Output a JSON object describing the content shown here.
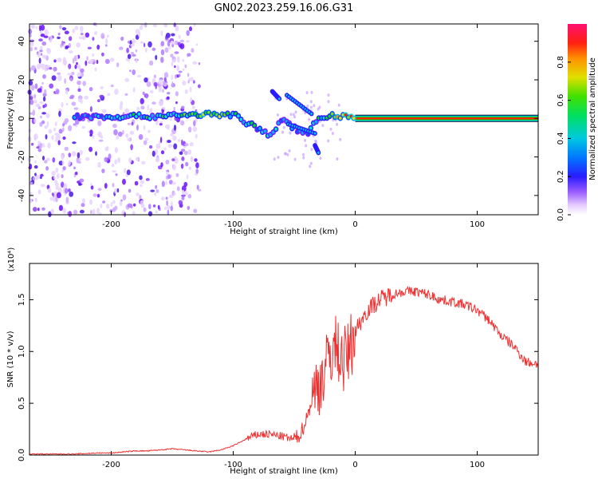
{
  "figure_title": "GN02.2023.259.16.06.G31",
  "chart_data": [
    {
      "type": "heatmap",
      "title": "GN02.2023.259.16.06.G31",
      "xlabel": "Height of straight line (km)",
      "ylabel": "Frequency (Hz)",
      "xlim": [
        -267,
        150
      ],
      "ylim": [
        -50,
        49
      ],
      "xticks": [
        -200,
        -100,
        0,
        100
      ],
      "xtick_labels": [
        "-200",
        "-100",
        "0",
        "100"
      ],
      "yticks": [
        -40,
        -20,
        0,
        20,
        40
      ],
      "ytick_labels": [
        "-40",
        "-20",
        "0",
        "20",
        "40"
      ],
      "colorbar": {
        "label": "Normalized spectral amplitude",
        "range": [
          0,
          1
        ],
        "ticks": [
          0.0,
          0.2,
          0.4,
          0.6,
          0.8
        ],
        "tick_labels": [
          "0.0",
          "0.2",
          "0.4",
          "0.6",
          "0.8"
        ],
        "colors": [
          "#ffffff",
          "#e6ccff",
          "#b48cff",
          "#7a1cff",
          "#2a1cff",
          "#0055ff",
          "#00b0ff",
          "#00e8c8",
          "#00e000",
          "#7ae000",
          "#e0e000",
          "#ff9000",
          "#ff2000",
          "#ff1060"
        ]
      },
      "ridge": {
        "x": [
          -230,
          -200,
          -170,
          -140,
          -120,
          -100,
          -90,
          -80,
          -70,
          -60,
          -50,
          -40,
          -30,
          -20,
          -10,
          0,
          50,
          100,
          150
        ],
        "freq": [
          1,
          1,
          1,
          2,
          2,
          2,
          -2,
          -5,
          -9,
          -1,
          -5,
          -8,
          0,
          2,
          1,
          0,
          0,
          0,
          0
        ],
        "amplitude": [
          0.45,
          0.5,
          0.55,
          0.6,
          0.7,
          0.6,
          0.55,
          0.5,
          0.5,
          0.45,
          0.45,
          0.45,
          0.55,
          0.7,
          0.85,
          0.9,
          0.95,
          0.95,
          0.95
        ]
      }
    },
    {
      "type": "line",
      "xlabel": "Height of straight line (km)",
      "ylabel": "SNR (10 * v/v)",
      "y_multiplier": "(x10⁴)",
      "xlim": [
        -267,
        150
      ],
      "ylim": [
        0,
        1.85
      ],
      "xticks": [
        -200,
        -100,
        0,
        100
      ],
      "xtick_labels": [
        "-200",
        "-100",
        "0",
        "100"
      ],
      "yticks": [
        0.0,
        0.5,
        1.0,
        1.5
      ],
      "ytick_labels": [
        "0.0",
        "0.5",
        "1.0",
        "1.5"
      ],
      "color": "#f03030",
      "series": [
        {
          "x": [
            -267,
            -250,
            -230,
            -210,
            -200,
            -190,
            -180,
            -170,
            -160,
            -150,
            -140,
            -130,
            -120,
            -110,
            -100,
            -90,
            -80,
            -70,
            -60,
            -50,
            -45,
            -40,
            -35,
            -30,
            -25,
            -20,
            -15,
            -10,
            -5,
            0,
            5,
            10,
            20,
            30,
            40,
            50,
            60,
            70,
            80,
            90,
            100,
            110,
            120,
            130,
            140,
            150
          ],
          "y": [
            0.01,
            0.01,
            0.01,
            0.02,
            0.02,
            0.03,
            0.04,
            0.04,
            0.05,
            0.06,
            0.05,
            0.04,
            0.03,
            0.05,
            0.09,
            0.15,
            0.2,
            0.2,
            0.18,
            0.15,
            0.2,
            0.35,
            0.55,
            0.7,
            0.8,
            1.0,
            1.05,
            0.9,
            1.0,
            1.2,
            1.3,
            1.4,
            1.5,
            1.55,
            1.58,
            1.58,
            1.55,
            1.5,
            1.48,
            1.45,
            1.4,
            1.3,
            1.15,
            1.05,
            0.9,
            0.88
          ]
        }
      ]
    }
  ]
}
